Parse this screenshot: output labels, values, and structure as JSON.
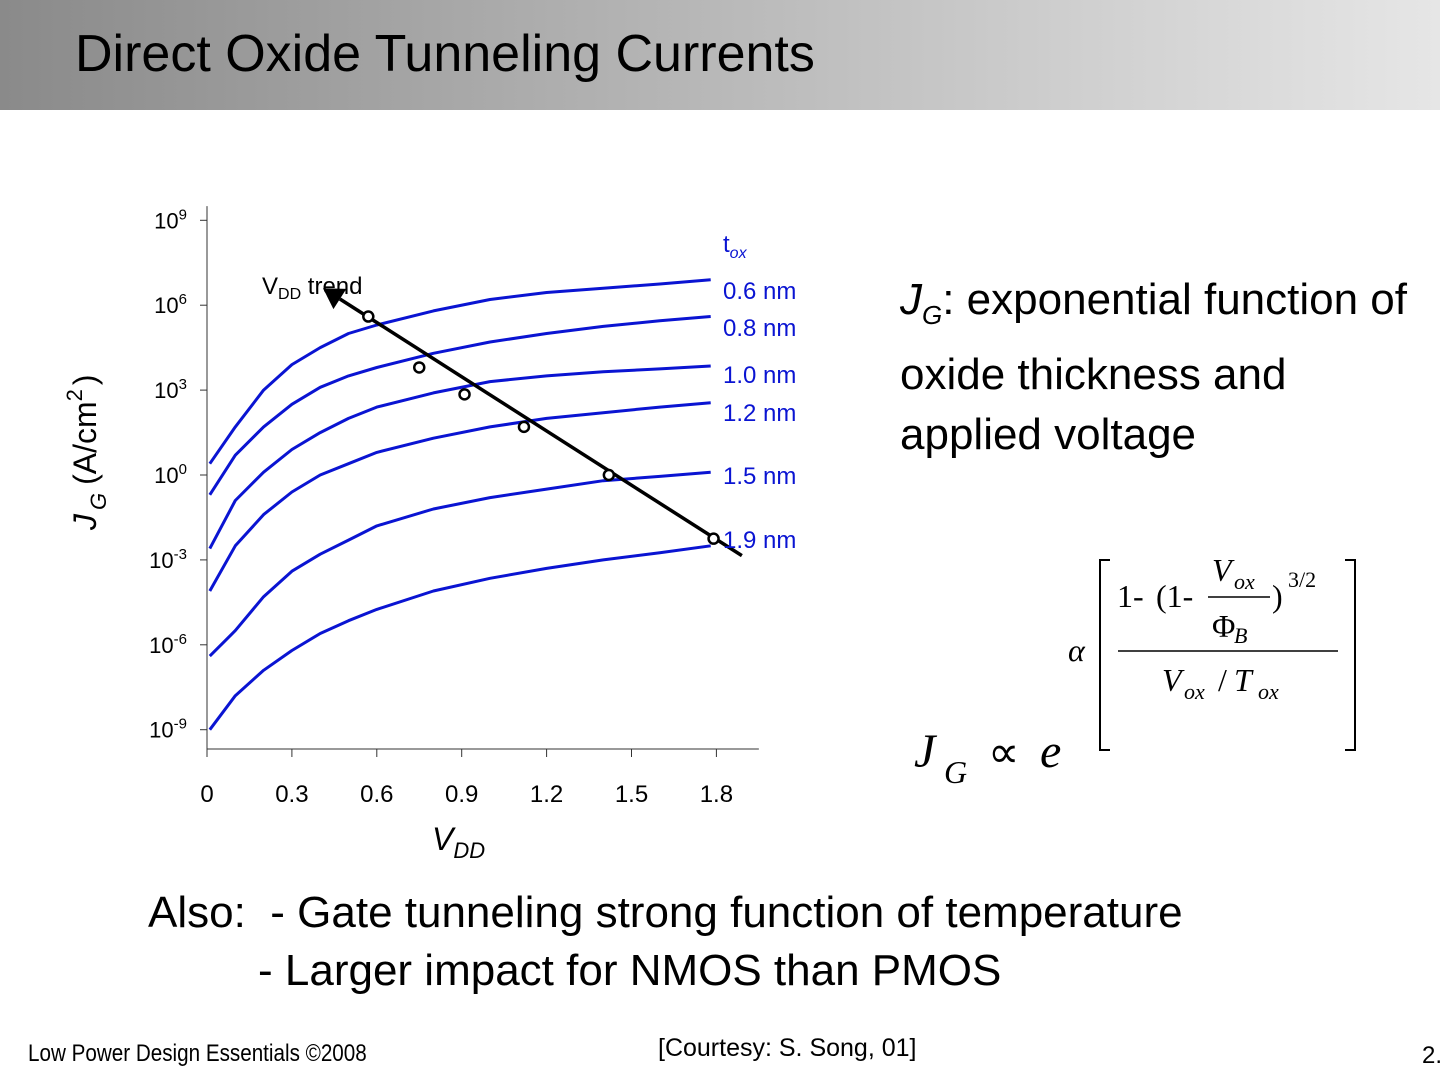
{
  "slide": {
    "title": "Direct Oxide Tunneling Currents",
    "side_text_main": ": exponential function of oxide thickness and applied voltage",
    "side_text_symbol": "J",
    "side_text_sub": "G",
    "notes_line1": "Also:  - Gate tunneling strong function of temperature",
    "notes_line2": "         - Larger impact for NMOS than PMOS",
    "footer_left": "Low Power Design Essentials ©2008",
    "courtesy": "[Courtesy: S. Song, 01]",
    "page_number": "2."
  },
  "formula": {
    "lhs": "J",
    "lhs_sub": "G",
    "prop": "∝",
    "base": "e",
    "alpha": "α",
    "one_minus": "1-",
    "inner_open": "(1-",
    "v_ox": "V",
    "ox_sub": "ox",
    "phi": "Φ",
    "phi_sub": "B",
    "close_power": ")",
    "power": "3/2",
    "denominator_v": "V",
    "denominator_slash": "/",
    "denominator_t": "T",
    "denominator_t_sub": "ox"
  },
  "chart_data": {
    "type": "line",
    "xlabel": "V",
    "xlabel_sub": "DD",
    "ylabel": "J",
    "ylabel_sub": "G",
    "ylabel_unit": "(A/cm",
    "ylabel_unit_sup": "2",
    "ylabel_unit_close": ")",
    "xlim": [
      0,
      1.95
    ],
    "ylim_log10": [
      -9.7,
      9.5
    ],
    "y_scale": "log",
    "x_ticks": [
      0,
      0.3,
      0.6,
      0.9,
      1.2,
      1.5,
      1.8
    ],
    "x_tick_labels": [
      "0",
      "0.3",
      "0.6",
      "0.9",
      "1.2",
      "1.5",
      "1.8"
    ],
    "y_ticks_log10": [
      9,
      6,
      3,
      0,
      -3,
      -6,
      -9
    ],
    "y_tick_base": "10",
    "y_tick_exponents": [
      "9",
      "6",
      "3",
      "0",
      "-3",
      "-6",
      "-9"
    ],
    "legend_title": "t",
    "legend_title_sub": "ox",
    "series_color": "#0a14d2",
    "series": [
      {
        "name": "0.6 nm",
        "x": [
          0.01,
          0.1,
          0.2,
          0.3,
          0.4,
          0.5,
          0.6,
          0.8,
          1.0,
          1.2,
          1.4,
          1.6,
          1.78
        ],
        "log10_y": [
          0.4,
          1.7,
          3.0,
          3.9,
          4.5,
          5.0,
          5.3,
          5.8,
          6.2,
          6.45,
          6.6,
          6.75,
          6.9
        ]
      },
      {
        "name": "0.8 nm",
        "x": [
          0.01,
          0.1,
          0.2,
          0.3,
          0.4,
          0.5,
          0.6,
          0.8,
          1.0,
          1.2,
          1.4,
          1.6,
          1.78
        ],
        "log10_y": [
          -0.7,
          0.7,
          1.7,
          2.5,
          3.1,
          3.5,
          3.8,
          4.3,
          4.7,
          5.0,
          5.25,
          5.45,
          5.6
        ]
      },
      {
        "name": "1.0 nm",
        "x": [
          0.01,
          0.1,
          0.2,
          0.3,
          0.4,
          0.5,
          0.6,
          0.8,
          1.0,
          1.2,
          1.4,
          1.6,
          1.78
        ],
        "log10_y": [
          -2.6,
          -0.9,
          0.1,
          0.9,
          1.5,
          2.0,
          2.4,
          2.9,
          3.3,
          3.5,
          3.65,
          3.75,
          3.85
        ]
      },
      {
        "name": "1.2 nm",
        "x": [
          0.01,
          0.1,
          0.2,
          0.3,
          0.4,
          0.5,
          0.6,
          0.8,
          1.0,
          1.2,
          1.4,
          1.6,
          1.78
        ],
        "log10_y": [
          -4.1,
          -2.5,
          -1.4,
          -0.6,
          0.0,
          0.4,
          0.8,
          1.3,
          1.7,
          2.0,
          2.2,
          2.4,
          2.55
        ]
      },
      {
        "name": "1.5 nm",
        "x": [
          0.01,
          0.1,
          0.2,
          0.3,
          0.4,
          0.5,
          0.6,
          0.8,
          1.0,
          1.2,
          1.4,
          1.6,
          1.78
        ],
        "log10_y": [
          -6.4,
          -5.5,
          -4.3,
          -3.4,
          -2.8,
          -2.3,
          -1.8,
          -1.2,
          -0.8,
          -0.5,
          -0.2,
          -0.05,
          0.1
        ]
      },
      {
        "name": "1.9 nm",
        "x": [
          0.01,
          0.1,
          0.2,
          0.3,
          0.4,
          0.5,
          0.6,
          0.8,
          1.0,
          1.2,
          1.4,
          1.6,
          1.78
        ],
        "log10_y": [
          -9.0,
          -7.8,
          -6.9,
          -6.2,
          -5.6,
          -5.15,
          -4.75,
          -4.1,
          -3.65,
          -3.3,
          -3.0,
          -2.75,
          -2.5
        ]
      }
    ],
    "trend_label": "V",
    "trend_label_sub": "DD",
    "trend_label_rest": " trend",
    "trend_points": [
      {
        "x": 0.57,
        "log10_y": 5.6
      },
      {
        "x": 0.75,
        "log10_y": 3.8
      },
      {
        "x": 0.91,
        "log10_y": 2.85
      },
      {
        "x": 1.12,
        "log10_y": 1.7
      },
      {
        "x": 1.42,
        "log10_y": 0.0
      },
      {
        "x": 1.79,
        "log10_y": -2.25
      }
    ],
    "trend_line": {
      "from": {
        "x": 1.89,
        "log10_y": -2.85
      },
      "to": {
        "x": 0.41,
        "log10_y": 6.6
      }
    },
    "grid": false
  }
}
